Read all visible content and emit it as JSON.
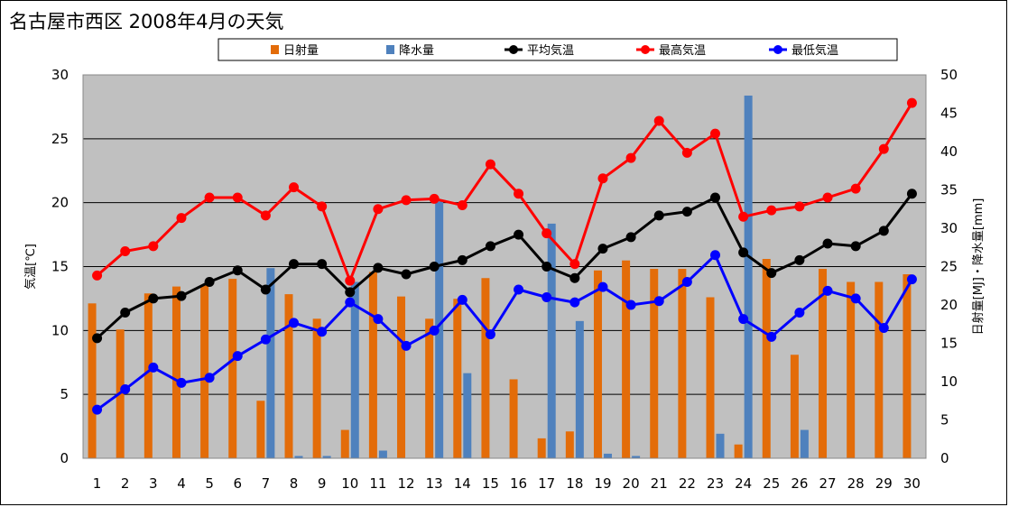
{
  "chart_data": {
    "type": "bar",
    "title": "名古屋市西区  2008年4月の天気",
    "categories": [
      "1",
      "2",
      "3",
      "4",
      "5",
      "6",
      "7",
      "8",
      "9",
      "10",
      "11",
      "12",
      "13",
      "14",
      "15",
      "16",
      "17",
      "18",
      "19",
      "20",
      "21",
      "22",
      "23",
      "24",
      "25",
      "26",
      "27",
      "28",
      "29",
      "30"
    ],
    "left_axis": {
      "label": "気温[℃]",
      "range": [
        0,
        30
      ],
      "ticks": [
        "0",
        "5",
        "10",
        "15",
        "20",
        "25",
        "30"
      ]
    },
    "right_axis": {
      "label": "日射量[MJ]・降水量[mm]",
      "range": [
        0,
        50
      ],
      "ticks": [
        "0",
        "5",
        "10",
        "15",
        "20",
        "25",
        "30",
        "35",
        "40",
        "45",
        "50"
      ]
    },
    "grid": true,
    "legend_position": "top",
    "series": [
      {
        "name": "日射量",
        "type": "bar",
        "axis": "right",
        "color": "#E36C09",
        "values": [
          20.2,
          16.8,
          21.5,
          22.4,
          22.6,
          23.4,
          7.5,
          21.4,
          18.2,
          3.7,
          24.3,
          21.1,
          18.2,
          20.8,
          23.5,
          10.3,
          2.6,
          3.5,
          24.5,
          25.8,
          24.7,
          24.7,
          21.0,
          1.8,
          26.0,
          13.5,
          24.7,
          23.0,
          23.0,
          24.0
        ]
      },
      {
        "name": "降水量",
        "type": "bar",
        "axis": "right",
        "color": "#4F81BD",
        "values": [
          0,
          0,
          0,
          0,
          0,
          0,
          24.8,
          0.3,
          0.3,
          23.0,
          1.0,
          0,
          33.5,
          11.1,
          0,
          0,
          30.6,
          17.9,
          0.6,
          0.3,
          0,
          0,
          3.2,
          47.3,
          0,
          3.7,
          0,
          0,
          0,
          0
        ]
      },
      {
        "name": "平均気温",
        "type": "line",
        "axis": "left",
        "color": "#000000",
        "values": [
          9.4,
          11.4,
          12.5,
          12.7,
          13.8,
          14.7,
          13.2,
          15.2,
          15.2,
          13.0,
          14.9,
          14.4,
          15.0,
          15.5,
          16.6,
          17.5,
          15.0,
          14.1,
          16.4,
          17.3,
          19.0,
          19.3,
          20.4,
          16.1,
          14.5,
          15.5,
          16.8,
          16.6,
          17.8,
          20.7
        ]
      },
      {
        "name": "最高気温",
        "type": "line",
        "axis": "left",
        "color": "#FF0000",
        "values": [
          14.3,
          16.2,
          16.6,
          18.8,
          20.4,
          20.4,
          19.0,
          21.2,
          19.7,
          13.9,
          19.5,
          20.2,
          20.3,
          19.8,
          23.0,
          20.7,
          17.6,
          15.2,
          21.9,
          23.5,
          26.4,
          23.9,
          25.4,
          18.9,
          19.4,
          19.7,
          20.4,
          21.1,
          24.2,
          27.8
        ]
      },
      {
        "name": "最低気温",
        "type": "line",
        "axis": "left",
        "color": "#0000FF",
        "values": [
          3.8,
          5.4,
          7.1,
          5.9,
          6.3,
          8.0,
          9.3,
          10.6,
          9.9,
          12.2,
          10.9,
          8.8,
          10.0,
          12.4,
          9.7,
          13.2,
          12.6,
          12.2,
          13.4,
          12.0,
          12.3,
          13.8,
          15.9,
          10.9,
          9.5,
          11.4,
          13.1,
          12.5,
          10.2,
          14.0
        ]
      }
    ]
  }
}
